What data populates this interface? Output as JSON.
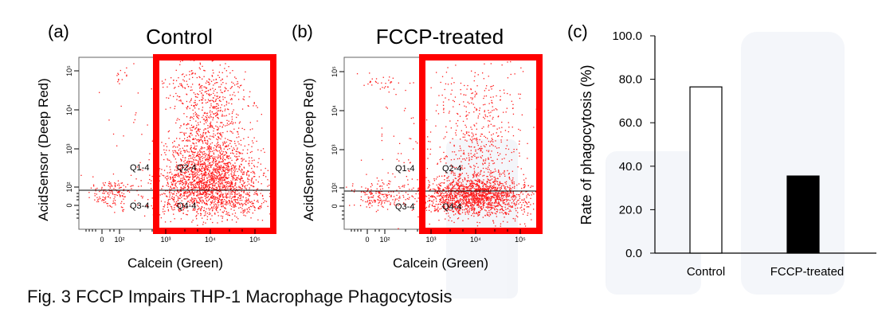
{
  "caption": "Fig. 3 FCCP Impairs THP-1 Macrophage Phagocytosis",
  "colors": {
    "dots": "#ff1a1a",
    "gate": "#ff0000",
    "bar_control": "#ffffff",
    "bar_fccp": "#000000",
    "axis": "#000000"
  },
  "chart_data": [
    {
      "panel": "(a)",
      "type": "scatter",
      "title": "Control",
      "xlabel": "Calcein (Green)",
      "ylabel": "AcidSensor (Deep Red)",
      "x_ticks": [
        "0",
        "10²",
        "10³",
        "10⁴",
        "10⁵"
      ],
      "y_ticks": [
        "0",
        "10²",
        "10³",
        "10⁴",
        "10⁵"
      ],
      "quadrants": [
        "Q1-4",
        "Q2-4",
        "Q3-4",
        "Q4-4"
      ],
      "scale": "logicle"
    },
    {
      "panel": "(b)",
      "type": "scatter",
      "title": "FCCP-treated",
      "xlabel": "Calcein (Green)",
      "ylabel": "AcidSensor (Deep Red)",
      "x_ticks": [
        "0",
        "10²",
        "10³",
        "10⁴",
        "10⁵"
      ],
      "y_ticks": [
        "0",
        "10²",
        "10³",
        "10⁴",
        "10⁵"
      ],
      "quadrants": [
        "Q1-4",
        "Q2-4",
        "Q3-4",
        "Q4-4"
      ],
      "scale": "logicle"
    },
    {
      "panel": "(c)",
      "type": "bar",
      "categories": [
        "Control",
        "FCCP-treated"
      ],
      "values": [
        76.5,
        35.5
      ],
      "ylabel": "Rate of phagocytosis (%)",
      "ylim": [
        0,
        100
      ],
      "y_ticks": [
        "0.0",
        "20.0",
        "40.0",
        "60.0",
        "80.0",
        "100.0"
      ],
      "grid": false
    }
  ]
}
